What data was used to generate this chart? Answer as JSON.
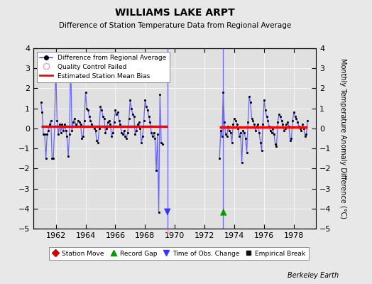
{
  "title": "WILLIAMS LAKE ARPT",
  "subtitle": "Difference of Station Temperature Data from Regional Average",
  "ylabel": "Monthly Temperature Anomaly Difference (°C)",
  "xlim": [
    1960.5,
    1979.5
  ],
  "ylim": [
    -5,
    4
  ],
  "yticks": [
    -5,
    -4,
    -3,
    -2,
    -1,
    0,
    1,
    2,
    3,
    4
  ],
  "xticks": [
    1962,
    1964,
    1966,
    1968,
    1970,
    1972,
    1974,
    1976,
    1978
  ],
  "background_color": "#e8e8e8",
  "plot_bg_color": "#e0e0e0",
  "grid_color": "#c8c8c8",
  "line_color": "#6666ff",
  "dot_color": "#000000",
  "bias_color": "#ff0000",
  "segment1_bias": 0.1,
  "segment2_bias": 0.05,
  "gap_start": 1969.5,
  "gap_end": 1973.0,
  "time_obs_change_x": 1969.5,
  "record_gap_x": 1973.25,
  "data_segment1": [
    [
      1961.0,
      1.3
    ],
    [
      1961.083,
      0.8
    ],
    [
      1961.167,
      -0.3
    ],
    [
      1961.25,
      -0.3
    ],
    [
      1961.333,
      -1.5
    ],
    [
      1961.417,
      -0.3
    ],
    [
      1961.5,
      -0.1
    ],
    [
      1961.583,
      0.2
    ],
    [
      1961.667,
      0.4
    ],
    [
      1961.75,
      -1.5
    ],
    [
      1961.833,
      -1.5
    ],
    [
      1961.917,
      0.1
    ],
    [
      1962.0,
      3.2
    ],
    [
      1962.083,
      0.4
    ],
    [
      1962.167,
      -0.3
    ],
    [
      1962.25,
      0.2
    ],
    [
      1962.333,
      -0.2
    ],
    [
      1962.417,
      0.2
    ],
    [
      1962.5,
      -0.1
    ],
    [
      1962.583,
      0.2
    ],
    [
      1962.667,
      -0.1
    ],
    [
      1962.75,
      -0.4
    ],
    [
      1962.833,
      -1.4
    ],
    [
      1962.917,
      -0.3
    ],
    [
      1963.0,
      3.3
    ],
    [
      1963.083,
      -0.1
    ],
    [
      1963.167,
      0.3
    ],
    [
      1963.25,
      0.5
    ],
    [
      1963.333,
      0.2
    ],
    [
      1963.417,
      0.1
    ],
    [
      1963.5,
      0.4
    ],
    [
      1963.583,
      0.3
    ],
    [
      1963.667,
      0.2
    ],
    [
      1963.75,
      -0.5
    ],
    [
      1963.833,
      -0.4
    ],
    [
      1963.917,
      0.4
    ],
    [
      1964.0,
      1.8
    ],
    [
      1964.083,
      1.0
    ],
    [
      1964.167,
      0.9
    ],
    [
      1964.25,
      0.6
    ],
    [
      1964.333,
      0.4
    ],
    [
      1964.417,
      0.2
    ],
    [
      1964.5,
      0.1
    ],
    [
      1964.583,
      -0.0
    ],
    [
      1964.667,
      -0.1
    ],
    [
      1964.75,
      -0.6
    ],
    [
      1964.833,
      -0.7
    ],
    [
      1964.917,
      0.0
    ],
    [
      1965.0,
      1.1
    ],
    [
      1965.083,
      0.9
    ],
    [
      1965.167,
      0.6
    ],
    [
      1965.25,
      0.5
    ],
    [
      1965.333,
      -0.2
    ],
    [
      1965.417,
      -0.0
    ],
    [
      1965.5,
      0.3
    ],
    [
      1965.583,
      0.4
    ],
    [
      1965.667,
      0.2
    ],
    [
      1965.75,
      -0.4
    ],
    [
      1965.833,
      -0.2
    ],
    [
      1965.917,
      0.3
    ],
    [
      1966.0,
      0.9
    ],
    [
      1966.083,
      0.7
    ],
    [
      1966.167,
      0.8
    ],
    [
      1966.25,
      0.4
    ],
    [
      1966.333,
      0.2
    ],
    [
      1966.417,
      -0.2
    ],
    [
      1966.5,
      -0.3
    ],
    [
      1966.583,
      -0.1
    ],
    [
      1966.667,
      -0.4
    ],
    [
      1966.75,
      -0.5
    ],
    [
      1966.833,
      -0.2
    ],
    [
      1966.917,
      0.5
    ],
    [
      1967.0,
      1.4
    ],
    [
      1967.083,
      1.0
    ],
    [
      1967.167,
      0.7
    ],
    [
      1967.25,
      0.6
    ],
    [
      1967.333,
      -0.3
    ],
    [
      1967.417,
      -0.1
    ],
    [
      1967.5,
      0.2
    ],
    [
      1967.583,
      0.3
    ],
    [
      1967.667,
      0.0
    ],
    [
      1967.75,
      -0.7
    ],
    [
      1967.833,
      -0.4
    ],
    [
      1967.917,
      0.4
    ],
    [
      1968.0,
      1.4
    ],
    [
      1968.083,
      1.1
    ],
    [
      1968.167,
      0.9
    ],
    [
      1968.25,
      0.6
    ],
    [
      1968.333,
      0.3
    ],
    [
      1968.417,
      -0.2
    ],
    [
      1968.5,
      -0.4
    ],
    [
      1968.583,
      -0.2
    ],
    [
      1968.667,
      -0.5
    ],
    [
      1968.75,
      -2.1
    ],
    [
      1968.833,
      -0.3
    ],
    [
      1968.917,
      -4.2
    ],
    [
      1969.0,
      1.7
    ],
    [
      1969.083,
      -0.7
    ],
    [
      1969.167,
      -0.8
    ]
  ],
  "data_segment2": [
    [
      1973.0,
      -1.5
    ],
    [
      1973.083,
      -0.1
    ],
    [
      1973.167,
      -0.4
    ],
    [
      1973.25,
      1.8
    ],
    [
      1973.333,
      0.3
    ],
    [
      1973.417,
      -0.3
    ],
    [
      1973.5,
      -0.4
    ],
    [
      1973.583,
      0.1
    ],
    [
      1973.667,
      -0.1
    ],
    [
      1973.75,
      -0.2
    ],
    [
      1973.833,
      -0.7
    ],
    [
      1973.917,
      0.2
    ],
    [
      1974.0,
      0.5
    ],
    [
      1974.083,
      0.4
    ],
    [
      1974.167,
      0.2
    ],
    [
      1974.25,
      0.0
    ],
    [
      1974.333,
      -0.4
    ],
    [
      1974.417,
      -0.2
    ],
    [
      1974.5,
      -1.7
    ],
    [
      1974.583,
      -0.1
    ],
    [
      1974.667,
      -0.2
    ],
    [
      1974.75,
      -0.5
    ],
    [
      1974.833,
      -1.2
    ],
    [
      1974.917,
      0.3
    ],
    [
      1975.0,
      1.6
    ],
    [
      1975.083,
      1.3
    ],
    [
      1975.167,
      0.5
    ],
    [
      1975.25,
      0.4
    ],
    [
      1975.333,
      0.2
    ],
    [
      1975.417,
      -0.1
    ],
    [
      1975.5,
      0.1
    ],
    [
      1975.583,
      0.2
    ],
    [
      1975.667,
      -0.2
    ],
    [
      1975.75,
      -0.7
    ],
    [
      1975.833,
      -1.1
    ],
    [
      1975.917,
      0.2
    ],
    [
      1976.0,
      1.4
    ],
    [
      1976.083,
      0.9
    ],
    [
      1976.167,
      0.6
    ],
    [
      1976.25,
      0.4
    ],
    [
      1976.333,
      0.1
    ],
    [
      1976.417,
      -0.1
    ],
    [
      1976.5,
      -0.2
    ],
    [
      1976.583,
      0.0
    ],
    [
      1976.667,
      -0.3
    ],
    [
      1976.75,
      -0.8
    ],
    [
      1976.833,
      -0.9
    ],
    [
      1976.917,
      0.3
    ],
    [
      1977.0,
      0.7
    ],
    [
      1977.083,
      0.6
    ],
    [
      1977.167,
      0.4
    ],
    [
      1977.25,
      0.2
    ],
    [
      1977.333,
      -0.1
    ],
    [
      1977.417,
      -0.0
    ],
    [
      1977.5,
      0.2
    ],
    [
      1977.583,
      0.3
    ],
    [
      1977.667,
      0.1
    ],
    [
      1977.75,
      -0.6
    ],
    [
      1977.833,
      -0.5
    ],
    [
      1977.917,
      0.4
    ],
    [
      1978.0,
      0.8
    ],
    [
      1978.083,
      0.6
    ],
    [
      1978.167,
      0.5
    ],
    [
      1978.25,
      0.3
    ],
    [
      1978.333,
      0.1
    ],
    [
      1978.417,
      0.0
    ],
    [
      1978.5,
      -0.1
    ],
    [
      1978.583,
      0.2
    ],
    [
      1978.667,
      0.0
    ],
    [
      1978.75,
      -0.4
    ],
    [
      1978.833,
      -0.3
    ],
    [
      1978.917,
      0.4
    ]
  ],
  "watermark": "Berkeley Earth"
}
